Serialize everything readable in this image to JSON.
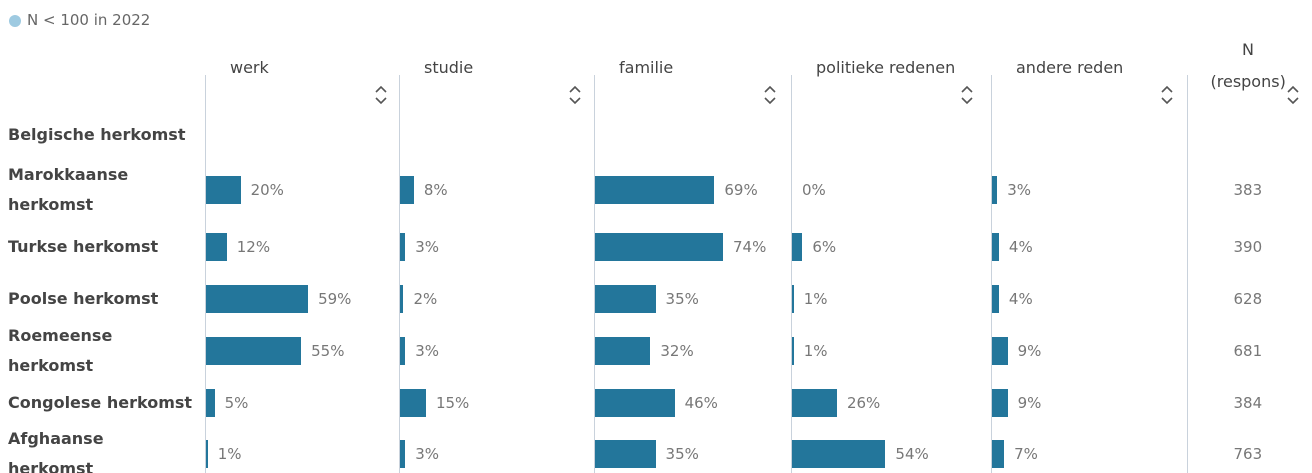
{
  "chart_data": {
    "type": "table_bars",
    "legend_note": "N < 100 in 2022",
    "legend_color": "#9ecae1",
    "color": "#23769b",
    "xlim": [
      0,
      100
    ],
    "categories": [
      "Belgische herkomst",
      "Marokkaanse herkomst",
      "Turkse herkomst",
      "Poolse herkomst",
      "Roemeense herkomst",
      "Congolese herkomst",
      "Afghaanse herkomst"
    ],
    "series": [
      {
        "name": "werk",
        "values": [
          null,
          20,
          12,
          59,
          55,
          5,
          1
        ],
        "value_labels": [
          null,
          "20%",
          "12%",
          "59%",
          "55%",
          "5%",
          "1%"
        ]
      },
      {
        "name": "studie",
        "values": [
          null,
          8,
          3,
          2,
          3,
          15,
          3
        ],
        "value_labels": [
          null,
          "8%",
          "3%",
          "2%",
          "3%",
          "15%",
          "3%"
        ]
      },
      {
        "name": "familie",
        "values": [
          null,
          69,
          74,
          35,
          32,
          46,
          35
        ],
        "value_labels": [
          null,
          "69%",
          "74%",
          "35%",
          "32%",
          "46%",
          "35%"
        ]
      },
      {
        "name": "politieke redenen",
        "values": [
          null,
          0,
          6,
          1,
          1,
          26,
          54
        ],
        "value_labels": [
          null,
          "0%",
          "6%",
          "1%",
          "1%",
          "26%",
          "54%"
        ]
      },
      {
        "name": "andere reden",
        "values": [
          null,
          3,
          4,
          4,
          9,
          9,
          7
        ],
        "value_labels": [
          null,
          "3%",
          "4%",
          "4%",
          "9%",
          "9%",
          "7%"
        ]
      }
    ],
    "n_header": [
      "N",
      "(respons)"
    ],
    "n_values": [
      null,
      383,
      390,
      628,
      681,
      384,
      763
    ]
  }
}
